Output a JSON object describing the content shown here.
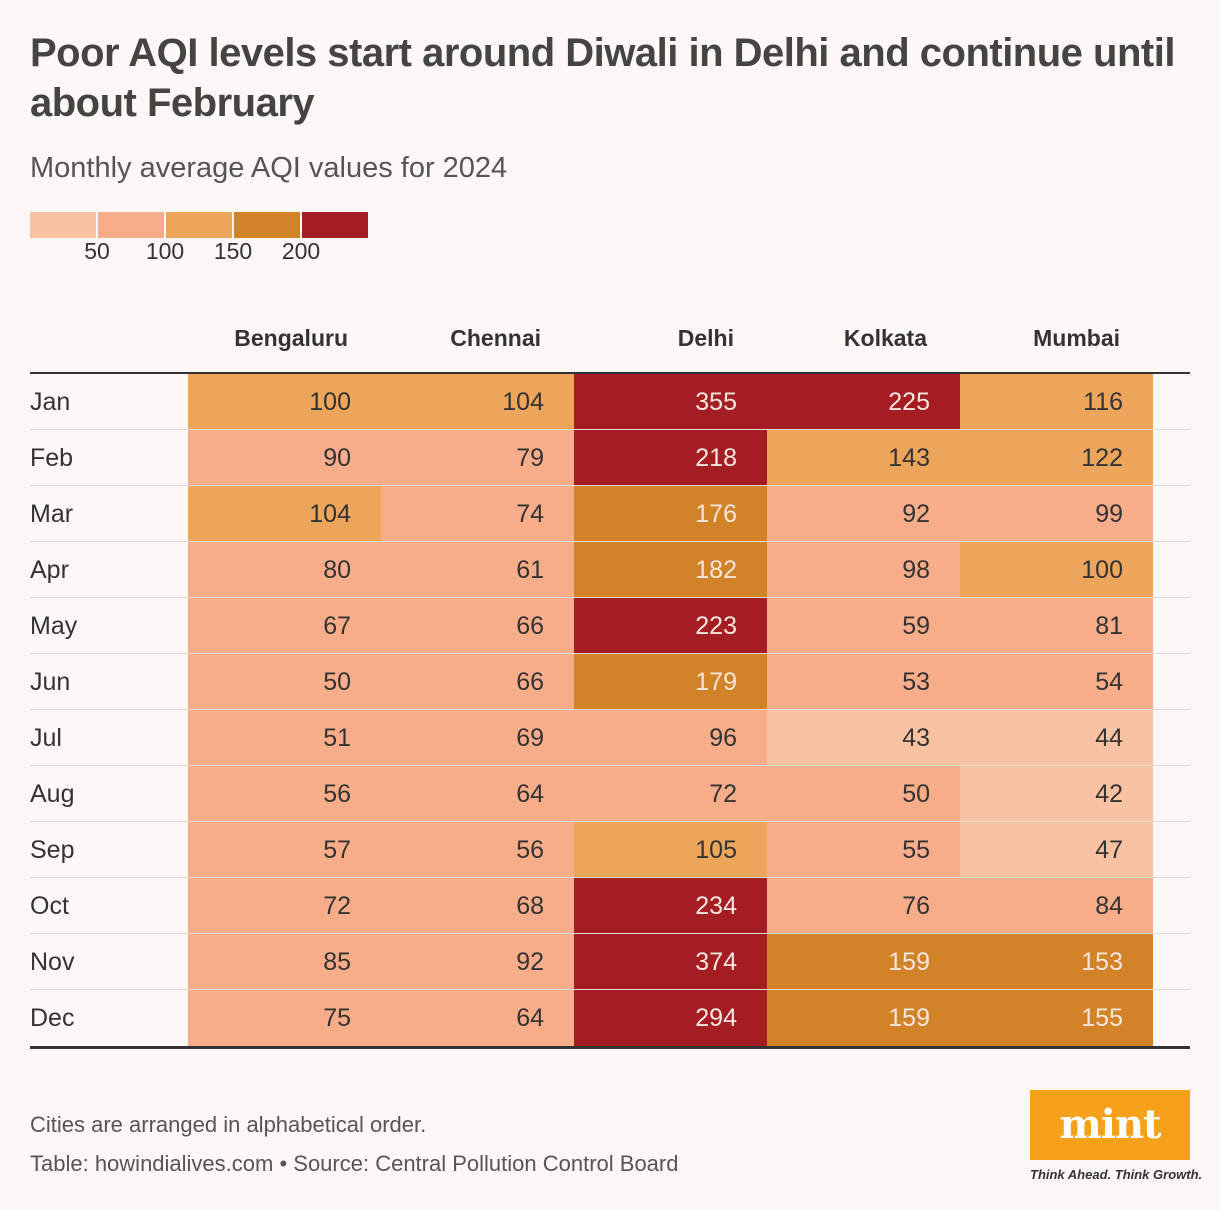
{
  "header": {
    "title": "Poor AQI levels start around Diwali in Delhi and continue until about February",
    "subtitle": "Monthly average AQI values for 2024"
  },
  "legend": {
    "ticks": [
      "50",
      "100",
      "150",
      "200"
    ],
    "colors": [
      "#f9c3a3",
      "#f8ad8a",
      "#eca55a",
      "#d28327",
      "#a41d22"
    ],
    "thresholds": [
      50,
      100,
      150,
      200
    ]
  },
  "footer": {
    "note": "Cities are arranged in alphabetical order.",
    "source": "Table: howindialives.com • Source: Central Pollution Control Board"
  },
  "brand": {
    "logo": "mint",
    "tagline": "Think Ahead. Think Growth.",
    "color": "#f7a11a"
  },
  "chart_data": {
    "type": "table",
    "title": "Poor AQI levels start around Diwali in Delhi and continue until about February",
    "subtitle": "Monthly average AQI values for 2024",
    "columns": [
      "Bengaluru",
      "Chennai",
      "Delhi",
      "Kolkata",
      "Mumbai"
    ],
    "rows": [
      {
        "month": "Jan",
        "values": [
          100,
          104,
          355,
          225,
          116
        ]
      },
      {
        "month": "Feb",
        "values": [
          90,
          79,
          218,
          143,
          122
        ]
      },
      {
        "month": "Mar",
        "values": [
          104,
          74,
          176,
          92,
          99
        ]
      },
      {
        "month": "Apr",
        "values": [
          80,
          61,
          182,
          98,
          100
        ]
      },
      {
        "month": "May",
        "values": [
          67,
          66,
          223,
          59,
          81
        ]
      },
      {
        "month": "Jun",
        "values": [
          50,
          66,
          179,
          53,
          54
        ]
      },
      {
        "month": "Jul",
        "values": [
          51,
          69,
          96,
          43,
          44
        ]
      },
      {
        "month": "Aug",
        "values": [
          56,
          64,
          72,
          50,
          42
        ]
      },
      {
        "month": "Sep",
        "values": [
          57,
          56,
          105,
          55,
          47
        ]
      },
      {
        "month": "Oct",
        "values": [
          72,
          68,
          234,
          76,
          84
        ]
      },
      {
        "month": "Nov",
        "values": [
          85,
          92,
          374,
          159,
          153
        ]
      },
      {
        "month": "Dec",
        "values": [
          75,
          64,
          294,
          159,
          155
        ]
      }
    ]
  }
}
